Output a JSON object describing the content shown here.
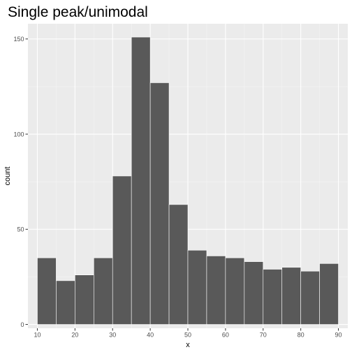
{
  "chart_data": {
    "type": "bar",
    "title": "Single peak/unimodal",
    "xlabel": "x",
    "ylabel": "count",
    "xlim": [
      7.5,
      92.5
    ],
    "ylim": [
      -2,
      158
    ],
    "grid": true,
    "x_ticks": [
      10,
      20,
      30,
      40,
      50,
      60,
      70,
      80,
      90
    ],
    "y_ticks": [
      0,
      50,
      100,
      150
    ],
    "bin_width": 5,
    "bins": [
      10,
      15,
      20,
      25,
      30,
      35,
      40,
      45,
      50,
      55,
      60,
      65,
      70,
      75,
      80,
      85
    ],
    "values": [
      35,
      23,
      26,
      35,
      78,
      151,
      127,
      63,
      39,
      36,
      35,
      33,
      29,
      30,
      28,
      32
    ],
    "colors": {
      "bar": "#595959",
      "bar_border": "#ffffff",
      "panel": "#ebebeb",
      "grid_major": "#ffffff",
      "grid_minor": "#f5f5f5",
      "tick": "#333333"
    }
  }
}
